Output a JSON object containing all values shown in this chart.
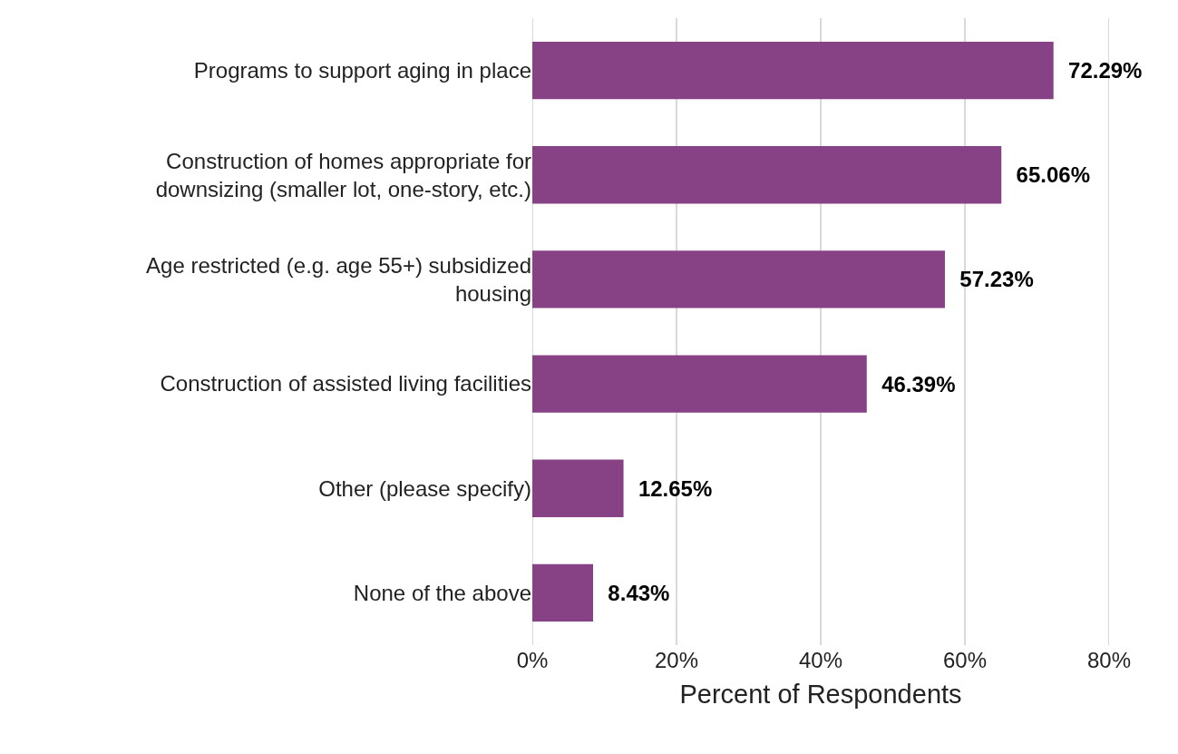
{
  "chart_data": {
    "type": "bar",
    "orientation": "horizontal",
    "categories": [
      "Programs to support aging in place",
      "Construction of homes appropriate for downsizing (smaller lot, one-story, etc.)",
      "Age restricted (e.g. age 55+) subsidized housing",
      "Construction of assisted living facilities",
      "Other (please specify)",
      "None of the above"
    ],
    "values": [
      72.29,
      65.06,
      57.23,
      46.39,
      12.65,
      8.43
    ],
    "value_labels": [
      "72.29%",
      "65.06%",
      "57.23%",
      "46.39%",
      "12.65%",
      "8.43%"
    ],
    "color": "#874286",
    "xlim": [
      0,
      80
    ],
    "xticks": [
      {
        "value": 0,
        "label": "0%"
      },
      {
        "value": 20,
        "label": "20%"
      },
      {
        "value": 40,
        "label": "40%"
      },
      {
        "value": 60,
        "label": "60%"
      },
      {
        "value": 80,
        "label": "80%"
      }
    ],
    "xlabel": "Percent of Respondents",
    "grid": "x"
  }
}
